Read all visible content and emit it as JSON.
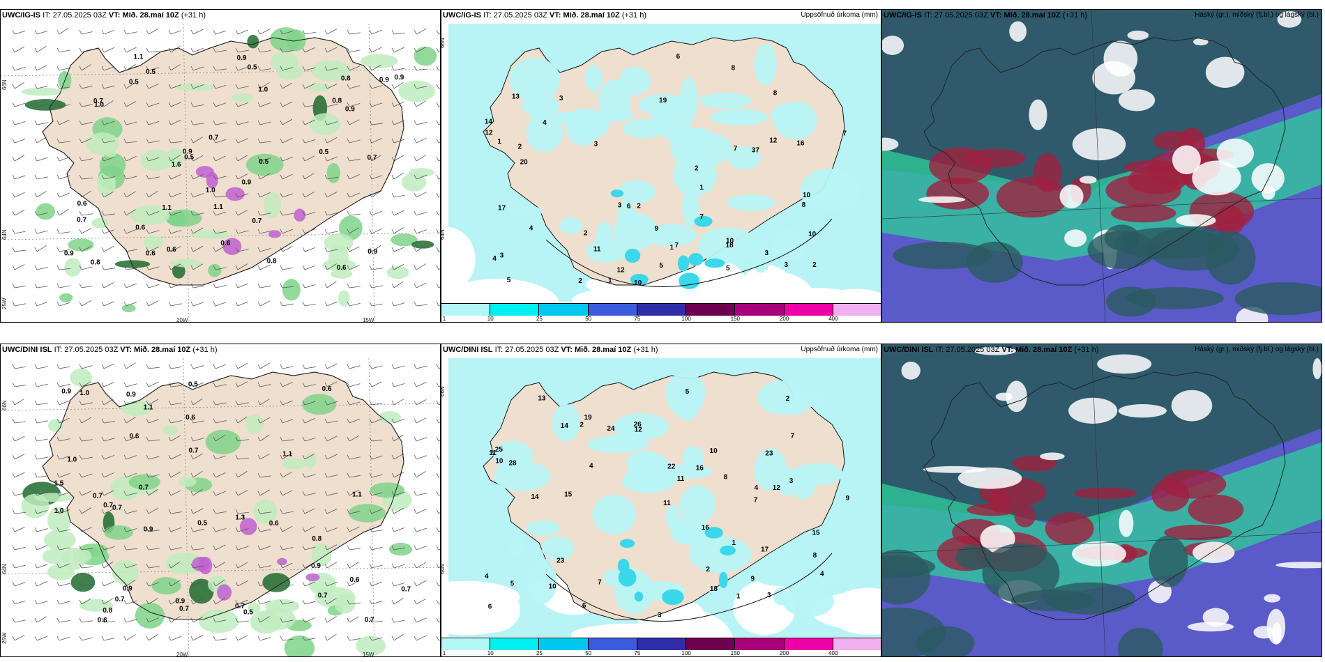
{
  "rows": [
    {
      "model": "UWC/IG-IS",
      "it_label": "IT:",
      "it_value": "27.05.2025 03Z",
      "vt_label": "VT:",
      "vt_value": "Mið. 28.maí 10Z",
      "lead": "(+31 h)"
    },
    {
      "model": "UWC/DINI ISL",
      "it_label": "IT:",
      "it_value": "27.05.2025 03Z",
      "vt_label": "VT:",
      "vt_value": "Mið. 28.maí 10Z",
      "lead": "(+31 h)"
    }
  ],
  "precip_title": "Uppsöfnuð úrkoma (mm)",
  "cloud_title": "Háský (gr.), miðský (fj.bl.) og lágský (bl.)",
  "axis_labels": {
    "lat_66": "66N",
    "lat_64": "64N",
    "lon_25": "25W",
    "lon_20": "20W",
    "lon_15": "15W"
  },
  "colorbar": {
    "ticks": [
      "1",
      "10",
      "25",
      "50",
      "75",
      "100",
      "150",
      "200",
      "400"
    ],
    "colors": [
      "#b3f7f7",
      "#00f0f0",
      "#00c8ee",
      "#3c5ce0",
      "#2e2ea8",
      "#6e0050",
      "#a8007a",
      "#ee00a8",
      "#f0b0f0"
    ]
  },
  "colors": {
    "land": "#efdfcf",
    "rain_light": "#c0ecbe",
    "rain_mid": "#7fd38a",
    "rain_dark": "#1f6b2e",
    "precip_bg": "#b8f4f6",
    "cloud_high": "#2fcf9a",
    "cloud_mid": "#5a5ac8",
    "cloud_low": "#2a5a60",
    "cloud_red": "#a0203e"
  },
  "wind_labels_top": [
    "0.5",
    "0.7",
    "0.5",
    "0.6",
    "0.7",
    "1.0",
    "0.5",
    "0.6",
    "1.1",
    "0.9",
    "0.8",
    "0.5",
    "0.7",
    "0.9",
    "0.6",
    "0.5",
    "0.8",
    "0.9",
    "0.9",
    "0.8",
    "0.6",
    "0.9",
    "0.5",
    "0.7",
    "1.0",
    "0.9",
    "0.6",
    "0.9",
    "1.6",
    "0.8",
    "0.9",
    "1.1",
    "0.6",
    "1.1",
    "0.7",
    "1.0"
  ],
  "wind_labels_bottom": [
    "0.7",
    "0.5",
    "0.7",
    "1.3",
    "1.0",
    "0.9",
    "0.8",
    "0.6",
    "0.9",
    "0.7",
    "0.5",
    "0.6",
    "0.7",
    "0.7",
    "1.5",
    "0.7",
    "1.0",
    "0.6",
    "0.9",
    "0.8",
    "0.7",
    "1.1",
    "0.6",
    "0.7",
    "0.6",
    "0.9",
    "0.5",
    "1.1",
    "0.6",
    "0.7",
    "1.0",
    "1.1",
    "0.7",
    "0.9",
    "0.9",
    "0.7"
  ],
  "precip_labels_top": [
    "3",
    "1",
    "2",
    "3",
    "4",
    "10",
    "4",
    "5",
    "6",
    "7",
    "11",
    "3",
    "8",
    "2",
    "10",
    "12",
    "8",
    "5",
    "7",
    "19",
    "18",
    "37",
    "10",
    "17",
    "12",
    "14",
    "1",
    "3",
    "2",
    "2",
    "1",
    "5",
    "20",
    "16",
    "3",
    "10",
    "1",
    "7",
    "2",
    "3",
    "9",
    "13",
    "2",
    "12",
    "4",
    "6",
    "7",
    "8"
  ],
  "precip_labels_bottom": [
    "2",
    "1",
    "3",
    "11",
    "9",
    "4",
    "6",
    "10",
    "3",
    "4",
    "15",
    "7",
    "12",
    "10",
    "16",
    "14",
    "23",
    "18",
    "22",
    "25",
    "17",
    "11",
    "19",
    "24",
    "28",
    "7",
    "1",
    "4",
    "5",
    "14",
    "13",
    "4",
    "6",
    "3",
    "2",
    "8",
    "12",
    "10",
    "26",
    "23",
    "15",
    "16",
    "11",
    "9",
    "5",
    "7",
    "8",
    "2"
  ]
}
